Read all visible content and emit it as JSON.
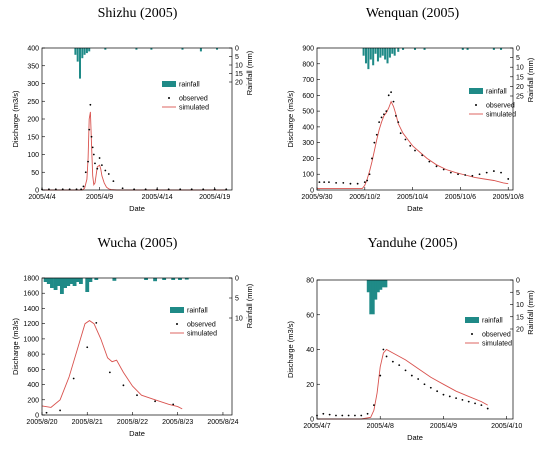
{
  "colors": {
    "rainfall": "#1f8a87",
    "observed": "#000000",
    "simulated": "#d9534f",
    "axis": "#000000"
  },
  "chart_data": [
    {
      "type": "line",
      "title": "Shizhu (2005)",
      "xlabel": "Date",
      "ylabel": "Discharge (m3/s)",
      "y2label": "Rainfall (mm)",
      "xlim": [
        0,
        16.5
      ],
      "ylim": [
        0,
        400
      ],
      "y2lim": [
        0,
        20
      ],
      "yticks": [
        0,
        50,
        100,
        150,
        200,
        250,
        300,
        350,
        400
      ],
      "y2ticks": [
        0,
        5,
        10,
        15,
        20
      ],
      "xticks": [
        {
          "v": 0,
          "label": "2005/4/4"
        },
        {
          "v": 5,
          "label": "2005/4/9"
        },
        {
          "v": 10,
          "label": "2005/4/14"
        },
        {
          "v": 15,
          "label": "2005/4/19"
        }
      ],
      "legend": [
        "rainfall",
        "observed",
        "simulated"
      ],
      "legend_position": "right",
      "rainfall": [
        [
          2.9,
          4
        ],
        [
          3.1,
          8
        ],
        [
          3.3,
          18
        ],
        [
          3.5,
          6
        ],
        [
          3.7,
          4
        ],
        [
          3.9,
          3
        ],
        [
          4.1,
          2
        ],
        [
          5.5,
          1
        ],
        [
          8.2,
          1
        ],
        [
          9.5,
          1
        ],
        [
          12.2,
          1
        ],
        [
          13.8,
          2
        ],
        [
          15.2,
          1
        ]
      ],
      "observed": {
        "x": [
          0,
          0.6,
          1.2,
          1.8,
          2.4,
          3.0,
          3.4,
          3.6,
          3.8,
          4.0,
          4.1,
          4.2,
          4.3,
          4.4,
          4.5,
          4.6,
          4.8,
          5.0,
          5.2,
          5.5,
          5.8,
          6.2,
          7.0,
          8.0,
          9.0,
          10.0,
          11.0,
          12.0,
          13.0,
          14.0,
          15.0,
          16.0
        ],
        "y": [
          2,
          2,
          2,
          2,
          2,
          2,
          2,
          10,
          50,
          80,
          170,
          240,
          150,
          120,
          100,
          75,
          60,
          90,
          70,
          55,
          45,
          25,
          5,
          2,
          2,
          2,
          2,
          2,
          2,
          2,
          2,
          2
        ]
      },
      "simulated": {
        "x": [
          0,
          3.5,
          3.7,
          3.9,
          4.0,
          4.1,
          4.2,
          4.3,
          4.4,
          4.5,
          4.6,
          4.8,
          5.0,
          5.1,
          5.2,
          5.4,
          5.6,
          5.8,
          6.0,
          6.5,
          16.0
        ],
        "y": [
          0,
          0,
          5,
          30,
          90,
          200,
          220,
          130,
          40,
          15,
          20,
          65,
          70,
          60,
          40,
          20,
          8,
          3,
          1,
          0,
          0
        ]
      }
    },
    {
      "type": "line",
      "title": "Wenquan (2005)",
      "xlabel": "Date",
      "ylabel": "Discharge (m3/s)",
      "y2label": "Rainfall (mm)",
      "xlim": [
        0,
        8.2
      ],
      "ylim": [
        0,
        900
      ],
      "y2lim": [
        0,
        25
      ],
      "yticks": [
        0,
        100,
        200,
        300,
        400,
        500,
        600,
        700,
        800,
        900
      ],
      "y2ticks": [
        0,
        5,
        10,
        15,
        20,
        25
      ],
      "xticks": [
        {
          "v": 0,
          "label": "2005/9/30"
        },
        {
          "v": 2,
          "label": "2005/10/2"
        },
        {
          "v": 4,
          "label": "2005/10/4"
        },
        {
          "v": 6,
          "label": "2005/10/6"
        },
        {
          "v": 8,
          "label": "2005/10/8"
        }
      ],
      "legend": [
        "rainfall",
        "observed",
        "simulated"
      ],
      "legend_position": "right",
      "rainfall": [
        [
          1.95,
          4
        ],
        [
          2.05,
          8
        ],
        [
          2.15,
          11
        ],
        [
          2.25,
          6
        ],
        [
          2.35,
          9
        ],
        [
          2.45,
          3
        ],
        [
          2.55,
          7
        ],
        [
          2.65,
          5
        ],
        [
          2.75,
          4
        ],
        [
          2.85,
          6
        ],
        [
          2.95,
          8
        ],
        [
          3.05,
          5
        ],
        [
          3.15,
          3
        ],
        [
          3.25,
          4
        ],
        [
          3.4,
          2
        ],
        [
          3.6,
          1
        ],
        [
          4.1,
          1
        ],
        [
          4.5,
          1
        ],
        [
          6.1,
          1
        ],
        [
          6.3,
          1
        ],
        [
          7.4,
          1
        ],
        [
          7.7,
          1
        ]
      ],
      "observed": {
        "x": [
          0.1,
          0.3,
          0.5,
          0.8,
          1.1,
          1.4,
          1.7,
          2.0,
          2.1,
          2.2,
          2.3,
          2.4,
          2.5,
          2.6,
          2.7,
          2.8,
          2.9,
          3.0,
          3.1,
          3.2,
          3.3,
          3.4,
          3.5,
          3.7,
          3.9,
          4.1,
          4.4,
          4.7,
          5.0,
          5.3,
          5.6,
          5.9,
          6.2,
          6.5,
          6.8,
          7.1,
          7.4,
          7.7,
          8.0
        ],
        "y": [
          50,
          50,
          50,
          45,
          45,
          40,
          40,
          50,
          60,
          100,
          200,
          300,
          350,
          430,
          460,
          480,
          500,
          600,
          620,
          560,
          470,
          430,
          360,
          320,
          280,
          250,
          220,
          180,
          150,
          130,
          110,
          100,
          95,
          90,
          100,
          110,
          120,
          110,
          70
        ]
      },
      "simulated": {
        "x": [
          0,
          1.0,
          1.9,
          2.0,
          2.1,
          2.2,
          2.3,
          2.4,
          2.5,
          2.6,
          2.7,
          2.8,
          2.9,
          3.0,
          3.1,
          3.2,
          3.3,
          3.4,
          3.6,
          3.8,
          4.0,
          4.3,
          4.6,
          5.0,
          5.4,
          5.8,
          6.2,
          6.6,
          7.0,
          7.4,
          7.8,
          8.0
        ],
        "y": [
          10,
          10,
          10,
          30,
          70,
          120,
          180,
          250,
          320,
          380,
          430,
          470,
          490,
          520,
          560,
          530,
          480,
          420,
          360,
          320,
          280,
          240,
          200,
          160,
          130,
          110,
          95,
          80,
          70,
          60,
          45,
          40
        ]
      }
    },
    {
      "type": "line",
      "title": "Wucha (2005)",
      "xlabel": "Date",
      "ylabel": "Discharge (m3/s)",
      "y2label": "Rainfall (mm)",
      "xlim": [
        0,
        4.2
      ],
      "ylim": [
        0,
        1800
      ],
      "y2lim": [
        0,
        10
      ],
      "yticks": [
        0,
        200,
        400,
        600,
        800,
        1000,
        1200,
        1400,
        1600,
        1800
      ],
      "y2ticks": [
        0,
        5,
        10
      ],
      "xticks": [
        {
          "v": 0,
          "label": "2005/8/20"
        },
        {
          "v": 1,
          "label": "2005/8/21"
        },
        {
          "v": 2,
          "label": "2005/8/22"
        },
        {
          "v": 3,
          "label": "2005/8/23"
        },
        {
          "v": 4,
          "label": "2005/8/24"
        }
      ],
      "legend": [
        "rainfall",
        "observed",
        "simulated"
      ],
      "legend_position": "center-left",
      "rainfall": [
        [
          0.08,
          1
        ],
        [
          0.15,
          1.5
        ],
        [
          0.22,
          2.5
        ],
        [
          0.3,
          3
        ],
        [
          0.37,
          2
        ],
        [
          0.44,
          4
        ],
        [
          0.51,
          2.5
        ],
        [
          0.58,
          2
        ],
        [
          0.65,
          1.5
        ],
        [
          0.72,
          2
        ],
        [
          0.79,
          1
        ],
        [
          0.86,
          1.5
        ],
        [
          1.0,
          3.5
        ],
        [
          1.07,
          1
        ],
        [
          1.2,
          0.5
        ],
        [
          1.6,
          0.7
        ],
        [
          2.3,
          0.5
        ],
        [
          2.5,
          0.8
        ],
        [
          2.7,
          0.5
        ],
        [
          2.9,
          0.5
        ],
        [
          3.05,
          0.5
        ],
        [
          3.2,
          0.4
        ]
      ],
      "observed": {
        "x": [
          0.1,
          0.4,
          0.7,
          1.0,
          1.2,
          1.5,
          1.8,
          2.1,
          2.5,
          2.9
        ],
        "y": [
          30,
          60,
          480,
          890,
          1210,
          560,
          390,
          260,
          180,
          140
        ]
      },
      "simulated": {
        "x": [
          0,
          0.2,
          0.4,
          0.6,
          0.8,
          0.95,
          1.05,
          1.15,
          1.3,
          1.45,
          1.55,
          1.65,
          1.8,
          2.0,
          2.2,
          2.5,
          2.8,
          3.0,
          3.1
        ],
        "y": [
          120,
          100,
          200,
          500,
          900,
          1200,
          1240,
          1200,
          1000,
          750,
          700,
          720,
          560,
          380,
          260,
          200,
          140,
          110,
          80
        ]
      }
    },
    {
      "type": "line",
      "title": "Yanduhe (2005)",
      "xlabel": "Date",
      "ylabel": "Discharge (m3/s)",
      "y2label": "Rainfall (mm)",
      "xlim": [
        0,
        3.1
      ],
      "ylim": [
        0,
        80
      ],
      "y2lim": [
        0,
        20
      ],
      "yticks": [
        0,
        20,
        40,
        60,
        80
      ],
      "y2ticks": [
        0,
        5,
        10,
        15,
        20
      ],
      "xticks": [
        {
          "v": 0,
          "label": "2005/4/7"
        },
        {
          "v": 1,
          "label": "2005/4/8"
        },
        {
          "v": 2,
          "label": "2005/4/9"
        },
        {
          "v": 3,
          "label": "2005/4/10"
        }
      ],
      "legend": [
        "rainfall",
        "observed",
        "simulated"
      ],
      "legend_position": "right",
      "rainfall": [
        [
          0.83,
          5
        ],
        [
          0.87,
          14
        ],
        [
          0.91,
          8
        ],
        [
          0.95,
          5
        ],
        [
          0.99,
          4
        ],
        [
          1.03,
          2
        ],
        [
          1.07,
          3
        ]
      ],
      "observed": {
        "x": [
          0.0,
          0.1,
          0.2,
          0.3,
          0.4,
          0.5,
          0.6,
          0.7,
          0.8,
          0.9,
          1.0,
          1.05,
          1.1,
          1.2,
          1.3,
          1.4,
          1.5,
          1.6,
          1.7,
          1.8,
          1.9,
          2.0,
          2.1,
          2.2,
          2.3,
          2.4,
          2.5,
          2.6,
          2.7
        ],
        "y": [
          2,
          3,
          2.5,
          2,
          2,
          2,
          2,
          2,
          3,
          8,
          25,
          40,
          36,
          33,
          31,
          28,
          25,
          23,
          20,
          18,
          16,
          14,
          13,
          12,
          11,
          10,
          9,
          8,
          6
        ]
      },
      "simulated": {
        "x": [
          0,
          0.7,
          0.85,
          0.9,
          0.95,
          1.0,
          1.05,
          1.1,
          1.2,
          1.4,
          1.6,
          1.8,
          2.0,
          2.2,
          2.4,
          2.6,
          2.7
        ],
        "y": [
          0,
          0,
          1,
          5,
          15,
          30,
          38,
          40,
          38,
          34,
          29,
          24,
          20,
          16,
          13,
          10,
          8
        ]
      }
    }
  ]
}
